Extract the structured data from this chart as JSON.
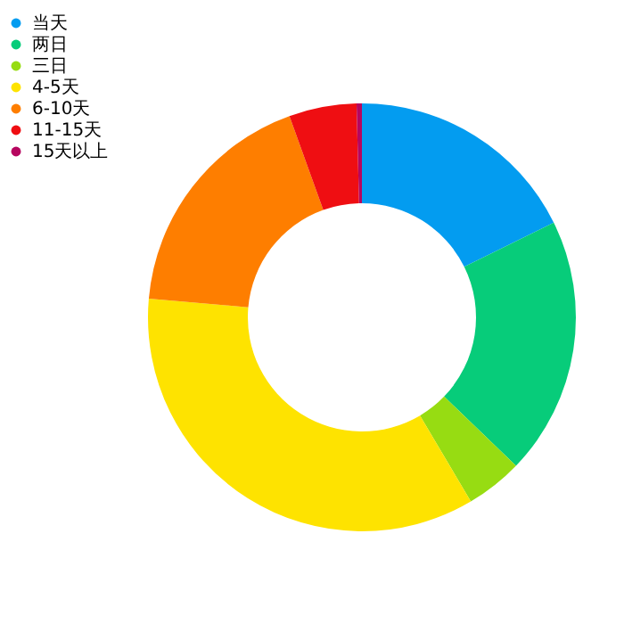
{
  "chart_data": {
    "type": "donut",
    "categories": [
      "当天",
      "两日",
      "三日",
      "4-5天",
      "6-10天",
      "11-15天",
      "15天以上"
    ],
    "values": [
      17.7,
      19.5,
      4.3,
      34.9,
      18.1,
      5.1,
      0.4
    ],
    "colors": [
      "#039cf0",
      "#07cc7a",
      "#97dc12",
      "#fee300",
      "#fe7e00",
      "#ef0e12",
      "#b6065f"
    ],
    "legend": "top left"
  }
}
